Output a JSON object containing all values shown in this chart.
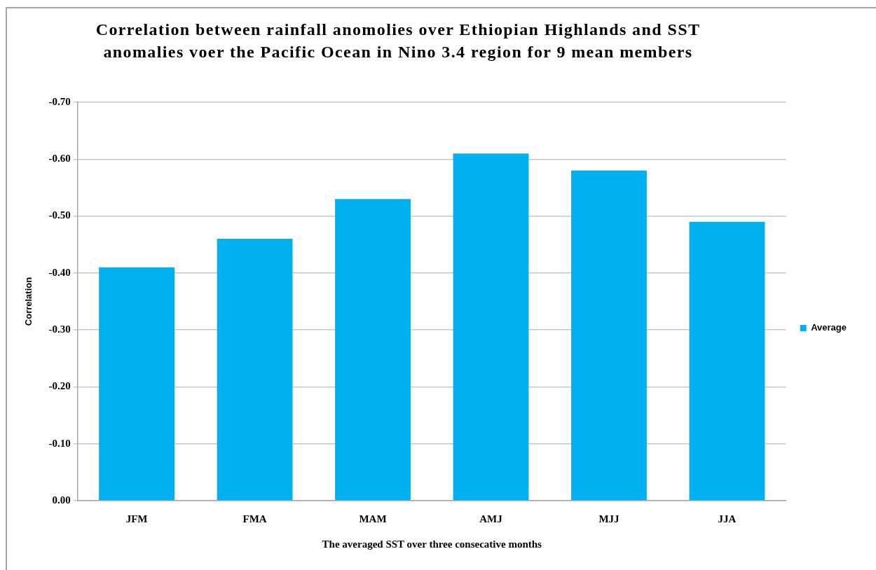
{
  "chart_data": {
    "type": "bar",
    "title": "Correlation between rainfall anomolies over Ethiopian Highlands and SST anomalies voer the Pacific Ocean in Nino 3.4 region for 9 mean members",
    "xlabel": "The averaged SST over three consecative months",
    "ylabel": "Correlation",
    "categories": [
      "JFM",
      "FMA",
      "MAM",
      "AMJ",
      "MJJ",
      "JJA"
    ],
    "series": [
      {
        "name": "Average",
        "color": "#00b0f0",
        "values": [
          -0.41,
          -0.46,
          -0.53,
          -0.61,
          -0.58,
          -0.49
        ]
      }
    ],
    "ylim": [
      0,
      -0.7
    ],
    "yticks": [
      {
        "value": 0,
        "label": "0.00"
      },
      {
        "value": -0.1,
        "label": "-0.10"
      },
      {
        "value": -0.2,
        "label": "-0.20"
      },
      {
        "value": -0.3,
        "label": "-0.30"
      },
      {
        "value": -0.4,
        "label": "-0.40"
      },
      {
        "value": -0.5,
        "label": "-0.50"
      },
      {
        "value": -0.6,
        "label": "-0.60"
      },
      {
        "value": -0.7,
        "label": "-0.70"
      }
    ],
    "grid": "y",
    "legend": "right"
  }
}
